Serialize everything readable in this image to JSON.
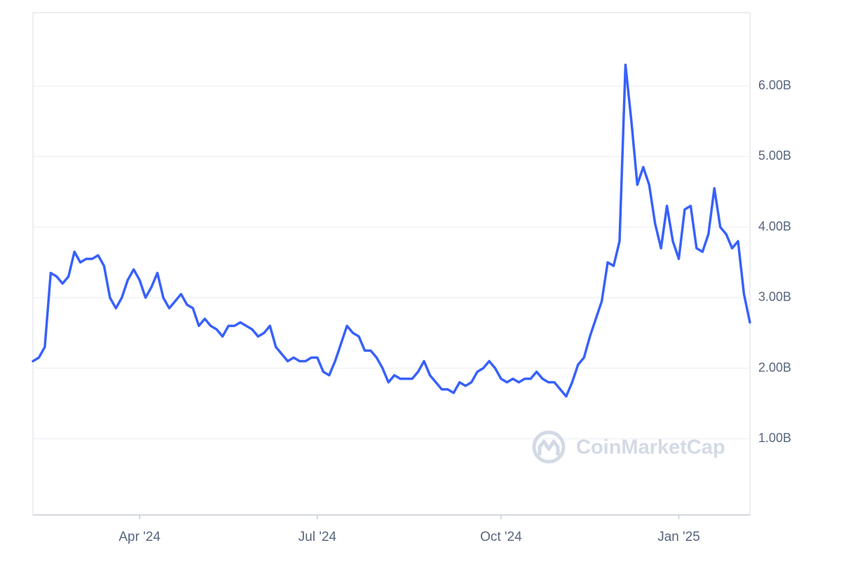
{
  "chart_data": {
    "type": "line",
    "watermark": "CoinMarketCap",
    "categories": [
      null,
      null,
      null,
      null,
      null,
      null,
      null,
      null,
      null,
      null,
      null,
      null,
      null,
      null,
      null,
      null,
      null,
      null,
      "Apr '24",
      null,
      null,
      null,
      null,
      null,
      null,
      null,
      null,
      null,
      null,
      null,
      null,
      null,
      null,
      null,
      null,
      null,
      null,
      null,
      null,
      null,
      null,
      null,
      null,
      null,
      null,
      null,
      null,
      null,
      "Jul '24",
      null,
      null,
      null,
      null,
      null,
      null,
      null,
      null,
      null,
      null,
      null,
      null,
      null,
      null,
      null,
      null,
      null,
      null,
      null,
      null,
      null,
      null,
      null,
      null,
      null,
      null,
      null,
      null,
      null,
      null,
      "Oct '24",
      null,
      null,
      null,
      null,
      null,
      null,
      null,
      null,
      null,
      null,
      null,
      null,
      null,
      null,
      null,
      null,
      null,
      null,
      null,
      null,
      null,
      null,
      null,
      null,
      null,
      null,
      null,
      null,
      null,
      "Jan '25",
      null,
      null,
      null,
      null,
      null,
      null,
      null,
      null,
      null,
      null,
      null,
      null
    ],
    "series": [
      {
        "color": "#3861fb",
        "values": [
          2.1,
          2.15,
          2.3,
          3.35,
          3.3,
          3.2,
          3.3,
          3.65,
          3.5,
          3.55,
          3.55,
          3.6,
          3.45,
          3.0,
          2.85,
          3.0,
          3.25,
          3.4,
          3.25,
          3.0,
          3.15,
          3.35,
          3.0,
          2.85,
          2.95,
          3.05,
          2.9,
          2.85,
          2.6,
          2.7,
          2.6,
          2.55,
          2.45,
          2.6,
          2.6,
          2.65,
          2.6,
          2.55,
          2.45,
          2.5,
          2.6,
          2.3,
          2.2,
          2.1,
          2.15,
          2.1,
          2.1,
          2.15,
          2.15,
          1.95,
          1.9,
          2.1,
          2.35,
          2.6,
          2.5,
          2.45,
          2.25,
          2.25,
          2.15,
          2.0,
          1.8,
          1.9,
          1.85,
          1.85,
          1.85,
          1.95,
          2.1,
          1.9,
          1.8,
          1.7,
          1.7,
          1.65,
          1.8,
          1.75,
          1.8,
          1.95,
          2.0,
          2.1,
          2.0,
          1.85,
          1.8,
          1.85,
          1.8,
          1.85,
          1.85,
          1.95,
          1.85,
          1.8,
          1.8,
          1.7,
          1.6,
          1.8,
          2.05,
          2.15,
          2.45,
          2.7,
          2.95,
          3.5,
          3.45,
          3.8,
          6.3,
          5.5,
          4.6,
          4.85,
          4.6,
          4.05,
          3.7,
          4.3,
          3.8,
          3.55,
          4.25,
          4.3,
          3.7,
          3.65,
          3.9,
          4.55,
          4.0,
          3.9,
          3.7,
          3.8,
          3.05,
          2.65
        ]
      }
    ],
    "ylim": [
      -0.08,
      7.04
    ],
    "yticks": [
      {
        "value": 1,
        "label": "1.00B"
      },
      {
        "value": 2,
        "label": "2.00B"
      },
      {
        "value": 3,
        "label": "3.00B"
      },
      {
        "value": 4,
        "label": "4.00B"
      },
      {
        "value": 5,
        "label": "5.00B"
      },
      {
        "value": 6,
        "label": "6.00B"
      }
    ],
    "grid": true
  }
}
